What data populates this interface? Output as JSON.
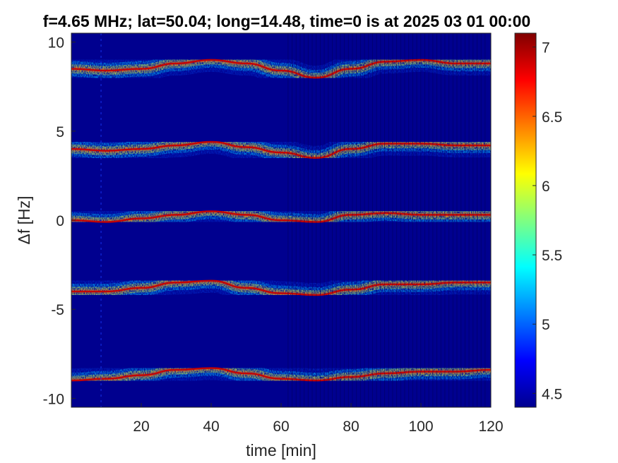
{
  "chart_data": {
    "type": "heatmap",
    "title": "f=4.65 MHz;  lat=50.04; long=14.48, time=0 is at 2025 03 01 00:00",
    "xlabel": "time [min]",
    "ylabel": "Δf [Hz]",
    "xlim": [
      0,
      120
    ],
    "ylim": [
      -10.5,
      10.5
    ],
    "x_ticks": [
      20,
      40,
      60,
      80,
      100,
      120
    ],
    "y_ticks": [
      10,
      5,
      0,
      -5,
      -10
    ],
    "colorbar": {
      "range": [
        4.4,
        7.1
      ],
      "ticks": [
        7,
        6.5,
        6,
        5.5,
        5,
        4.5
      ],
      "colormap": "jet"
    },
    "background_color": "#00008f",
    "grid": false,
    "series": [
      {
        "x": [
          0,
          10,
          20,
          30,
          40,
          50,
          60,
          70,
          80,
          90,
          100,
          110,
          120
        ],
        "y": [
          8.5,
          8.4,
          8.5,
          8.8,
          9.0,
          8.8,
          8.4,
          8.0,
          8.5,
          8.9,
          9.0,
          8.8,
          8.8
        ]
      },
      {
        "x": [
          0,
          10,
          20,
          30,
          40,
          50,
          60,
          70,
          80,
          90,
          100,
          110,
          120
        ],
        "y": [
          4.0,
          3.9,
          4.0,
          4.2,
          4.4,
          4.1,
          3.8,
          3.5,
          4.0,
          4.3,
          4.3,
          4.2,
          4.2
        ]
      },
      {
        "x": [
          0,
          10,
          20,
          30,
          40,
          50,
          60,
          70,
          80,
          90,
          100,
          110,
          120
        ],
        "y": [
          0.0,
          -0.1,
          0.1,
          0.3,
          0.5,
          0.3,
          0.0,
          -0.1,
          0.3,
          0.4,
          0.3,
          0.3,
          0.3
        ]
      },
      {
        "x": [
          0,
          10,
          20,
          30,
          40,
          50,
          60,
          70,
          80,
          90,
          100,
          110,
          120
        ],
        "y": [
          -4.0,
          -4.0,
          -3.8,
          -3.5,
          -3.4,
          -3.8,
          -4.1,
          -4.2,
          -3.9,
          -3.6,
          -3.6,
          -3.5,
          -3.5
        ]
      },
      {
        "x": [
          0,
          10,
          20,
          30,
          40,
          50,
          60,
          70,
          80,
          90,
          100,
          110,
          120
        ],
        "y": [
          -9.0,
          -8.9,
          -8.7,
          -8.4,
          -8.3,
          -8.6,
          -8.9,
          -9.0,
          -8.8,
          -8.6,
          -8.5,
          -8.5,
          -8.4
        ]
      }
    ]
  }
}
